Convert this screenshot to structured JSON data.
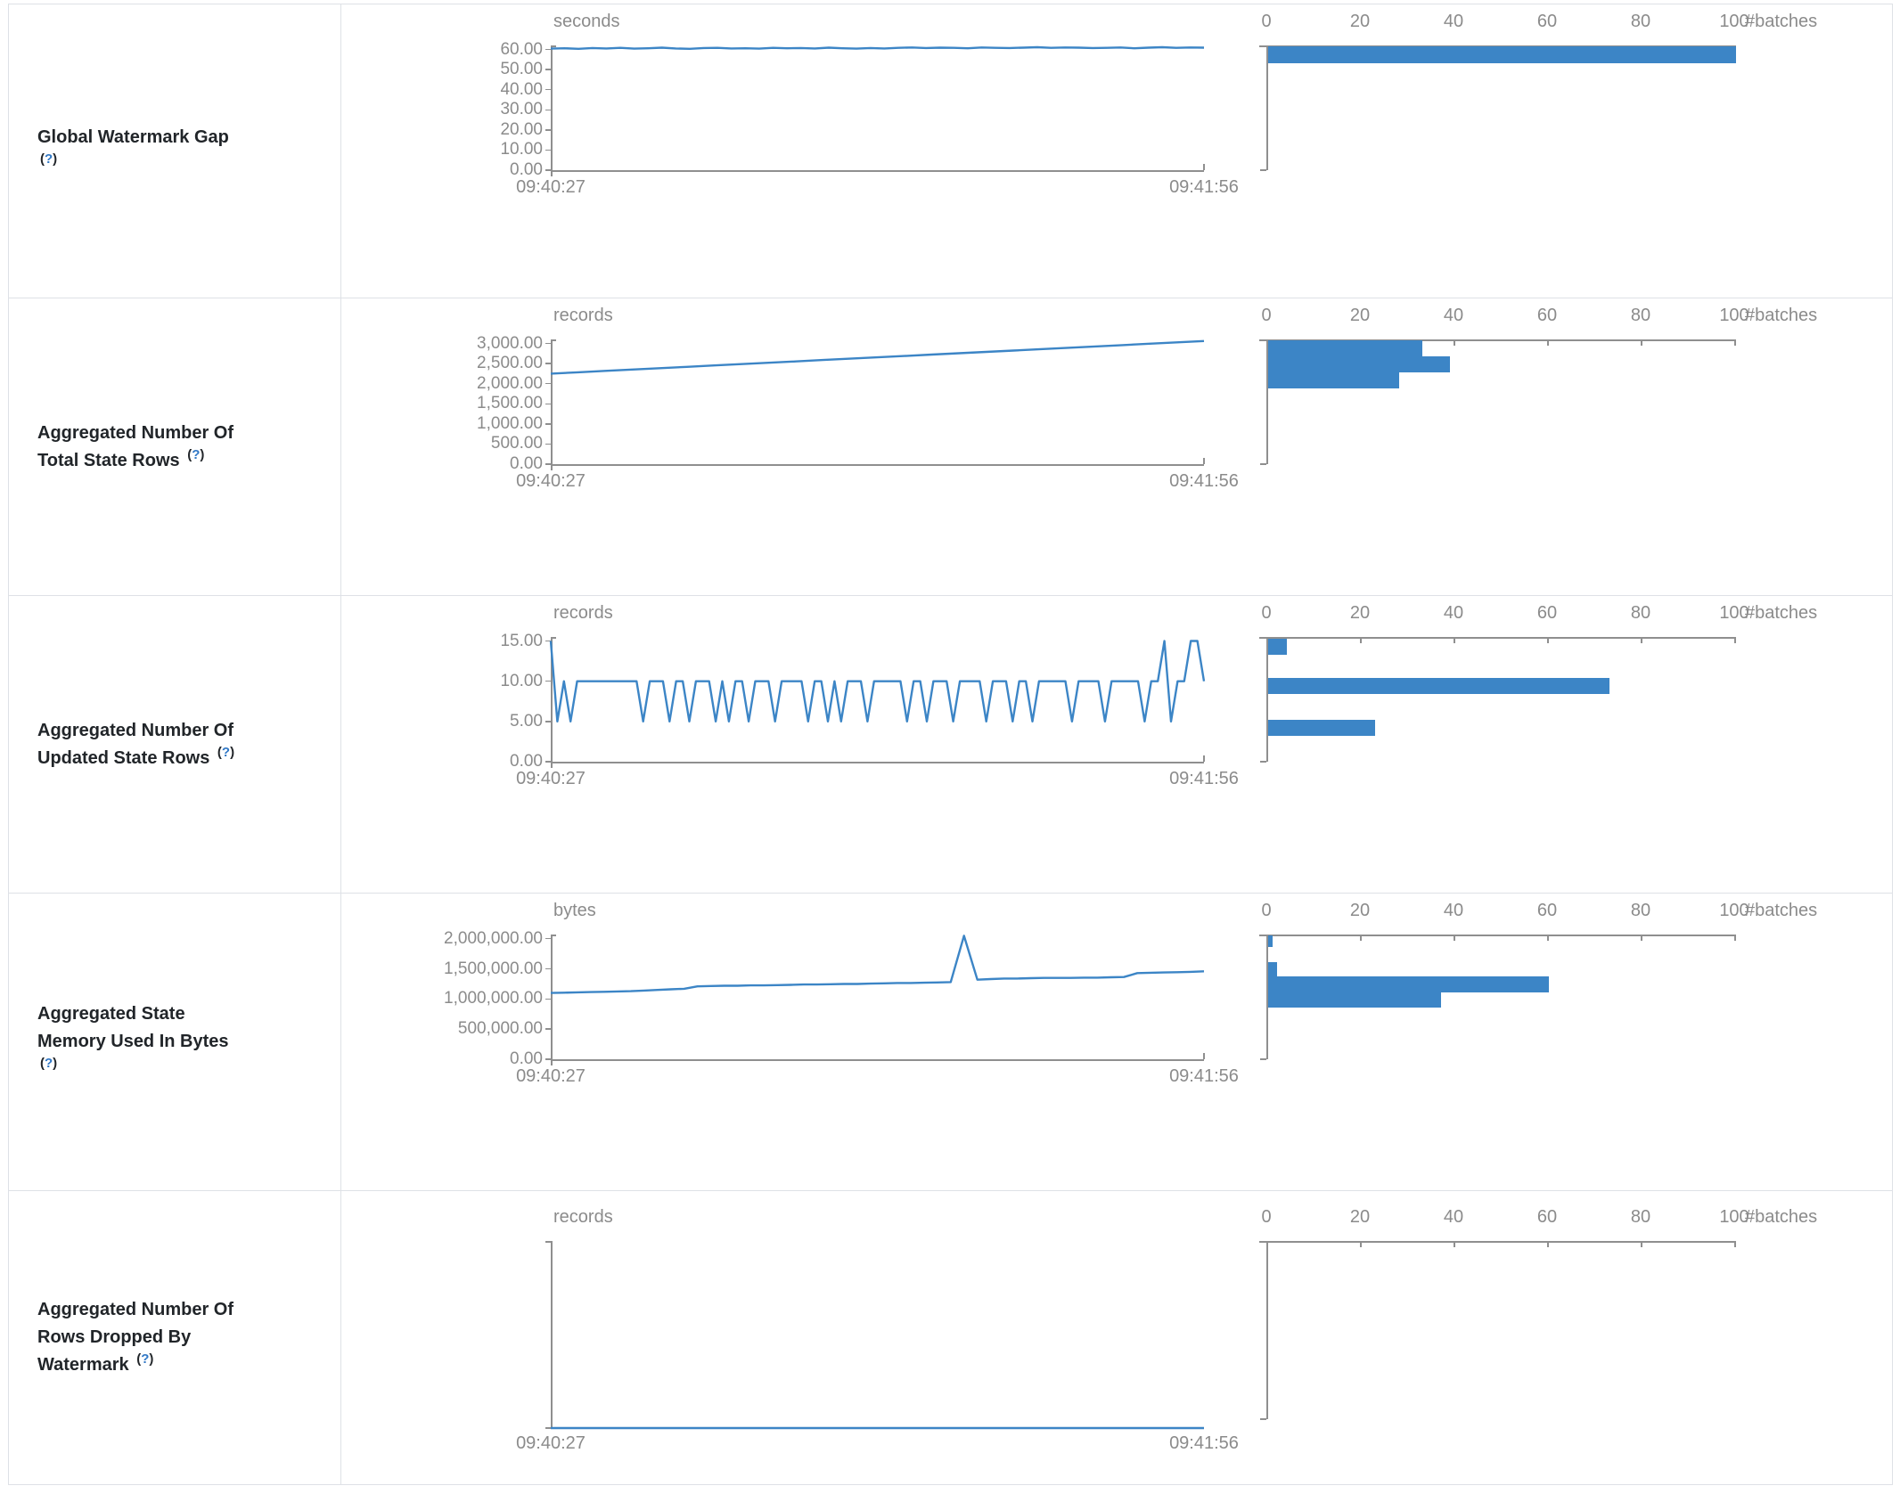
{
  "colors": {
    "accent": "#3c85c6",
    "axis": "#8f8f8f",
    "tick_text": "#8b8b8b",
    "label_text": "#212529",
    "help_link": "#3178c6",
    "border": "#dee1e6"
  },
  "help_link": {
    "open": "(",
    "q": "?",
    "close": ")"
  },
  "chart_data": [
    {
      "label": "Global Watermark Gap",
      "label_lines": [
        "Global Watermark Gap"
      ],
      "timeline": {
        "type": "line",
        "unit": "seconds",
        "x_start_label": "09:40:27",
        "x_end_label": "09:41:56",
        "ymax": 62,
        "yticks": [
          {
            "label": "60.00",
            "value": 60
          },
          {
            "label": "50.00",
            "value": 50
          },
          {
            "label": "40.00",
            "value": 40
          },
          {
            "label": "30.00",
            "value": 30
          },
          {
            "label": "20.00",
            "value": 20
          },
          {
            "label": "10.00",
            "value": 10
          },
          {
            "label": "0.00",
            "value": 0
          }
        ],
        "values": [
          60.4,
          60.6,
          60.3,
          60.7,
          60.5,
          60.8,
          60.4,
          60.6,
          60.9,
          60.5,
          60.3,
          60.7,
          60.8,
          60.5,
          60.6,
          60.4,
          60.8,
          60.6,
          60.7,
          60.5,
          60.9,
          60.6,
          60.4,
          60.7,
          60.5,
          60.8,
          61.0,
          60.7,
          60.9,
          60.8,
          60.6,
          61.0,
          60.8,
          60.7,
          60.9,
          61.1,
          60.8,
          61.0,
          60.9,
          60.7,
          60.8,
          61.0,
          60.6,
          60.9,
          61.1,
          60.8,
          61.0,
          60.9
        ]
      },
      "histogram": {
        "type": "bar",
        "xlabel": "#batches",
        "xmax": 100,
        "xticks": [
          {
            "label": "0",
            "value": 0
          },
          {
            "label": "20",
            "value": 20
          },
          {
            "label": "40",
            "value": 40
          },
          {
            "label": "60",
            "value": 60
          },
          {
            "label": "80",
            "value": 80
          },
          {
            "label": "100",
            "value": 100
          }
        ],
        "bars": [
          {
            "count": 100,
            "top": 1,
            "h": 19
          }
        ]
      }
    },
    {
      "label": "Aggregated Number Of Total State Rows",
      "label_lines": [
        "Aggregated Number Of",
        "Total State Rows"
      ],
      "timeline": {
        "type": "line",
        "unit": "records",
        "x_start_label": "09:40:27",
        "x_end_label": "09:41:56",
        "ymax": 3100,
        "yticks": [
          {
            "label": "3,000.00",
            "value": 3000
          },
          {
            "label": "2,500.00",
            "value": 2500
          },
          {
            "label": "2,000.00",
            "value": 2000
          },
          {
            "label": "1,500.00",
            "value": 1500
          },
          {
            "label": "1,000.00",
            "value": 1000
          },
          {
            "label": "500.00",
            "value": 500
          },
          {
            "label": "0.00",
            "value": 0
          }
        ],
        "values": [
          2250,
          2284,
          2318,
          2351,
          2385,
          2419,
          2453,
          2486,
          2520,
          2554,
          2588,
          2621,
          2655,
          2689,
          2723,
          2756,
          2790,
          2824,
          2858,
          2891,
          2925,
          2959,
          2993,
          3026,
          3060
        ]
      },
      "histogram": {
        "type": "bar",
        "xlabel": "#batches",
        "xmax": 100,
        "xticks": [
          {
            "label": "0",
            "value": 0
          },
          {
            "label": "20",
            "value": 20
          },
          {
            "label": "40",
            "value": 40
          },
          {
            "label": "60",
            "value": 60
          },
          {
            "label": "80",
            "value": 80
          },
          {
            "label": "100",
            "value": 100
          }
        ],
        "bars": [
          {
            "count": 33,
            "top": 1,
            "h": 18
          },
          {
            "count": 39,
            "top": 19,
            "h": 18
          },
          {
            "count": 28,
            "top": 37,
            "h": 18
          }
        ]
      }
    },
    {
      "label": "Aggregated Number Of Updated State Rows",
      "label_lines": [
        "Aggregated Number Of",
        "Updated State Rows"
      ],
      "timeline": {
        "type": "line",
        "unit": "records",
        "x_start_label": "09:40:27",
        "x_end_label": "09:41:56",
        "ymax": 15.5,
        "yticks": [
          {
            "label": "15.00",
            "value": 15
          },
          {
            "label": "10.00",
            "value": 10
          },
          {
            "label": "5.00",
            "value": 5
          },
          {
            "label": "0.00",
            "value": 0
          }
        ],
        "values": [
          15,
          5,
          10,
          5,
          10,
          10,
          10,
          10,
          10,
          10,
          10,
          10,
          10,
          10,
          5,
          10,
          10,
          10,
          5,
          10,
          10,
          5,
          10,
          10,
          10,
          5,
          10,
          5,
          10,
          10,
          5,
          10,
          10,
          10,
          5,
          10,
          10,
          10,
          10,
          5,
          10,
          10,
          5,
          10,
          5,
          10,
          10,
          10,
          5,
          10,
          10,
          10,
          10,
          10,
          5,
          10,
          10,
          5,
          10,
          10,
          10,
          5,
          10,
          10,
          10,
          10,
          5,
          10,
          10,
          10,
          5,
          10,
          10,
          5,
          10,
          10,
          10,
          10,
          10,
          5,
          10,
          10,
          10,
          10,
          5,
          10,
          10,
          10,
          10,
          10,
          5,
          10,
          10,
          15,
          5,
          10,
          10,
          15,
          15,
          10
        ]
      },
      "histogram": {
        "type": "bar",
        "xlabel": "#batches",
        "xmax": 100,
        "xticks": [
          {
            "label": "0",
            "value": 0
          },
          {
            "label": "20",
            "value": 20
          },
          {
            "label": "40",
            "value": 40
          },
          {
            "label": "60",
            "value": 60
          },
          {
            "label": "80",
            "value": 80
          },
          {
            "label": "100",
            "value": 100
          }
        ],
        "bars": [
          {
            "count": 4,
            "top": 2,
            "h": 18
          },
          {
            "count": 73,
            "top": 46,
            "h": 18
          },
          {
            "count": 23,
            "top": 93,
            "h": 18
          }
        ]
      }
    },
    {
      "label": "Aggregated State Memory Used In Bytes",
      "label_lines": [
        "Aggregated State",
        "Memory Used In Bytes"
      ],
      "timeline": {
        "type": "line",
        "unit": "bytes",
        "x_start_label": "09:40:27",
        "x_end_label": "09:41:56",
        "ymax": 2070000,
        "yticks": [
          {
            "label": "2,000,000.00",
            "value": 2000000
          },
          {
            "label": "1,500,000.00",
            "value": 1500000
          },
          {
            "label": "1,000,000.00",
            "value": 1000000
          },
          {
            "label": "500,000.00",
            "value": 500000
          },
          {
            "label": "0.00",
            "value": 0
          }
        ],
        "values": [
          1100000,
          1105000,
          1110000,
          1115000,
          1120000,
          1125000,
          1130000,
          1140000,
          1150000,
          1160000,
          1170000,
          1210000,
          1215000,
          1220000,
          1220000,
          1225000,
          1225000,
          1230000,
          1235000,
          1240000,
          1240000,
          1245000,
          1250000,
          1250000,
          1255000,
          1260000,
          1265000,
          1265000,
          1270000,
          1275000,
          1280000,
          2050000,
          1320000,
          1330000,
          1340000,
          1340000,
          1345000,
          1350000,
          1350000,
          1350000,
          1355000,
          1355000,
          1360000,
          1365000,
          1430000,
          1435000,
          1440000,
          1445000,
          1450000,
          1460000
        ]
      },
      "histogram": {
        "type": "bar",
        "xlabel": "#batches",
        "xmax": 100,
        "xticks": [
          {
            "label": "0",
            "value": 0
          },
          {
            "label": "20",
            "value": 20
          },
          {
            "label": "40",
            "value": 40
          },
          {
            "label": "60",
            "value": 60
          },
          {
            "label": "80",
            "value": 80
          },
          {
            "label": "100",
            "value": 100
          }
        ],
        "bars": [
          {
            "count": 1,
            "top": 1,
            "h": 13
          },
          {
            "count": 2,
            "top": 31,
            "h": 16
          },
          {
            "count": 60,
            "top": 47,
            "h": 18
          },
          {
            "count": 37,
            "top": 65,
            "h": 17
          }
        ]
      }
    },
    {
      "label": "Aggregated Number Of Rows Dropped By Watermark",
      "label_lines": [
        "Aggregated Number Of",
        "Rows Dropped By",
        "Watermark"
      ],
      "timeline": {
        "type": "line",
        "unit": "records",
        "x_start_label": "09:40:27",
        "x_end_label": "09:41:56",
        "ymax": 1,
        "yticks": [],
        "values": [
          0,
          0,
          0,
          0,
          0,
          0,
          0,
          0,
          0,
          0
        ]
      },
      "histogram": {
        "type": "bar",
        "xlabel": "#batches",
        "xmax": 100,
        "xticks": [
          {
            "label": "0",
            "value": 0
          },
          {
            "label": "20",
            "value": 20
          },
          {
            "label": "40",
            "value": 40
          },
          {
            "label": "60",
            "value": 60
          },
          {
            "label": "80",
            "value": 80
          },
          {
            "label": "100",
            "value": 100
          }
        ],
        "bars": []
      }
    }
  ]
}
